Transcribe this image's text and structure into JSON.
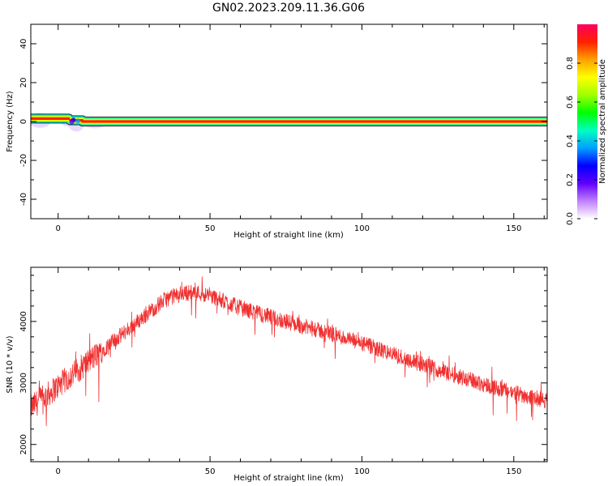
{
  "title": "GN02.2023.209.11.36.G06",
  "chart_data": [
    {
      "type": "heatmap",
      "xlabel": "Height of straight line (km)",
      "ylabel": "Frequency (Hz)",
      "xlim": [
        -9,
        161
      ],
      "ylim": [
        -50,
        50
      ],
      "xticks": [
        0,
        50,
        100,
        150
      ],
      "yticks": [
        40,
        20,
        0,
        -20,
        -40
      ],
      "colorbar": {
        "label": "Normalized spectral amplitude",
        "range": [
          0,
          1
        ],
        "ticks": [
          "0.0",
          "0.2",
          "0.4",
          "0.6",
          "0.8"
        ],
        "colors": [
          "#ffffff",
          "#c080ff",
          "#6000ff",
          "#0000ff",
          "#00a0ff",
          "#00ffc0",
          "#00ff00",
          "#a0ff00",
          "#ffff00",
          "#ffa000",
          "#ff2000",
          "#ff0060"
        ]
      },
      "ridge": {
        "description_segments": [
          {
            "x": [
              -9,
              3.5
            ],
            "frequency": 1.5
          },
          {
            "x": [
              4,
              8
            ],
            "frequency": 0.6
          },
          {
            "x": [
              8,
              161
            ],
            "frequency": 0.0
          }
        ]
      }
    },
    {
      "type": "line",
      "xlabel": "Height of straight line (km)",
      "ylabel": "SNR (10 * v/v)",
      "xlim": [
        -9,
        161
      ],
      "ylim": [
        1720,
        4880
      ],
      "xticks": [
        0,
        50,
        100,
        150
      ],
      "yticks": [
        2000,
        3000,
        4000
      ],
      "color": "#f03030",
      "trend": {
        "x": [
          -9,
          -5,
          0,
          5,
          10,
          15,
          20,
          25,
          30,
          35,
          40,
          45,
          50,
          55,
          60,
          70,
          80,
          90,
          100,
          110,
          120,
          130,
          140,
          150,
          160
        ],
        "y": [
          2600,
          2750,
          2950,
          3150,
          3350,
          3550,
          3750,
          3950,
          4150,
          4350,
          4450,
          4480,
          4420,
          4320,
          4220,
          4070,
          3930,
          3800,
          3640,
          3470,
          3300,
          3140,
          2980,
          2840,
          2720
        ]
      }
    }
  ]
}
